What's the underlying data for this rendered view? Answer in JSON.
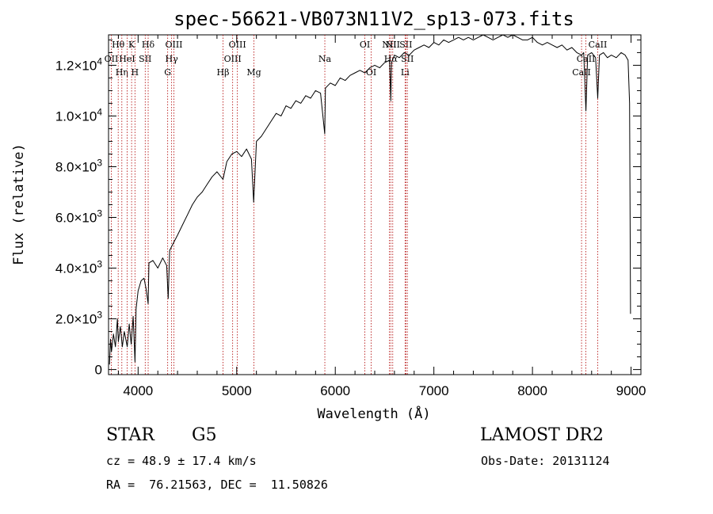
{
  "chart_data": {
    "type": "line",
    "title": "spec-56621-VB073N11V2_sp13-073.fits",
    "xlabel": "Wavelength (Å)",
    "ylabel": "Flux (relative)",
    "xlim": [
      3700,
      9100
    ],
    "ylim": [
      -200,
      13200
    ],
    "x_ticks": [
      4000,
      5000,
      6000,
      7000,
      8000,
      9000
    ],
    "y_ticks": [
      {
        "value": 0,
        "mantissa": "0",
        "exp": ""
      },
      {
        "value": 2000,
        "mantissa": "2.0×10",
        "exp": "3"
      },
      {
        "value": 4000,
        "mantissa": "4.0×10",
        "exp": "3"
      },
      {
        "value": 6000,
        "mantissa": "6.0×10",
        "exp": "3"
      },
      {
        "value": 8000,
        "mantissa": "8.0×10",
        "exp": "3"
      },
      {
        "value": 10000,
        "mantissa": "1.0×10",
        "exp": "4"
      },
      {
        "value": 12000,
        "mantissa": "1.2×10",
        "exp": "4"
      }
    ],
    "series": [
      {
        "values": [
          [
            3710,
            200
          ],
          [
            3720,
            1200
          ],
          [
            3730,
            700
          ],
          [
            3750,
            1400
          ],
          [
            3770,
            900
          ],
          [
            3790,
            2000
          ],
          [
            3800,
            1100
          ],
          [
            3820,
            1700
          ],
          [
            3840,
            900
          ],
          [
            3860,
            1500
          ],
          [
            3880,
            1100
          ],
          [
            3890,
            900
          ],
          [
            3910,
            1800
          ],
          [
            3930,
            1000
          ],
          [
            3950,
            2100
          ],
          [
            3968,
            300
          ],
          [
            3980,
            2400
          ],
          [
            4000,
            3100
          ],
          [
            4030,
            3500
          ],
          [
            4060,
            3600
          ],
          [
            4080,
            3200
          ],
          [
            4102,
            2600
          ],
          [
            4110,
            4200
          ],
          [
            4150,
            4300
          ],
          [
            4200,
            4000
          ],
          [
            4250,
            4400
          ],
          [
            4290,
            4100
          ],
          [
            4305,
            2800
          ],
          [
            4320,
            4700
          ],
          [
            4360,
            5000
          ],
          [
            4400,
            5300
          ],
          [
            4450,
            5700
          ],
          [
            4500,
            6100
          ],
          [
            4550,
            6500
          ],
          [
            4600,
            6800
          ],
          [
            4650,
            7000
          ],
          [
            4700,
            7300
          ],
          [
            4750,
            7600
          ],
          [
            4800,
            7800
          ],
          [
            4861,
            7500
          ],
          [
            4900,
            8200
          ],
          [
            4950,
            8500
          ],
          [
            5000,
            8600
          ],
          [
            5050,
            8400
          ],
          [
            5100,
            8700
          ],
          [
            5150,
            8300
          ],
          [
            5172,
            6600
          ],
          [
            5200,
            9000
          ],
          [
            5250,
            9200
          ],
          [
            5300,
            9500
          ],
          [
            5350,
            9800
          ],
          [
            5400,
            10100
          ],
          [
            5450,
            10000
          ],
          [
            5500,
            10400
          ],
          [
            5550,
            10300
          ],
          [
            5600,
            10600
          ],
          [
            5650,
            10500
          ],
          [
            5700,
            10800
          ],
          [
            5750,
            10700
          ],
          [
            5800,
            11000
          ],
          [
            5850,
            10900
          ],
          [
            5893,
            9300
          ],
          [
            5900,
            11100
          ],
          [
            5950,
            11300
          ],
          [
            6000,
            11200
          ],
          [
            6050,
            11500
          ],
          [
            6100,
            11400
          ],
          [
            6150,
            11600
          ],
          [
            6200,
            11700
          ],
          [
            6250,
            11800
          ],
          [
            6300,
            11700
          ],
          [
            6350,
            11900
          ],
          [
            6400,
            12000
          ],
          [
            6450,
            11900
          ],
          [
            6500,
            12100
          ],
          [
            6550,
            12200
          ],
          [
            6563,
            10600
          ],
          [
            6570,
            12100
          ],
          [
            6600,
            12400
          ],
          [
            6650,
            12300
          ],
          [
            6700,
            12500
          ],
          [
            6750,
            12400
          ],
          [
            6800,
            12600
          ],
          [
            6850,
            12700
          ],
          [
            6900,
            12800
          ],
          [
            6950,
            12700
          ],
          [
            7000,
            12900
          ],
          [
            7050,
            12800
          ],
          [
            7100,
            13000
          ],
          [
            7150,
            12900
          ],
          [
            7200,
            13000
          ],
          [
            7250,
            13100
          ],
          [
            7300,
            13000
          ],
          [
            7350,
            13100
          ],
          [
            7400,
            13000
          ],
          [
            7450,
            13100
          ],
          [
            7500,
            13200
          ],
          [
            7550,
            13100
          ],
          [
            7600,
            13000
          ],
          [
            7650,
            13100
          ],
          [
            7700,
            13200
          ],
          [
            7750,
            13100
          ],
          [
            7800,
            13200
          ],
          [
            7850,
            13100
          ],
          [
            7900,
            13000
          ],
          [
            7950,
            13000
          ],
          [
            8000,
            13100
          ],
          [
            8050,
            12900
          ],
          [
            8100,
            12800
          ],
          [
            8150,
            12900
          ],
          [
            8200,
            12800
          ],
          [
            8250,
            12700
          ],
          [
            8300,
            12800
          ],
          [
            8350,
            12600
          ],
          [
            8400,
            12700
          ],
          [
            8450,
            12500
          ],
          [
            8498,
            12400
          ],
          [
            8520,
            12500
          ],
          [
            8542,
            10200
          ],
          [
            8560,
            12400
          ],
          [
            8600,
            12500
          ],
          [
            8640,
            12300
          ],
          [
            8662,
            10700
          ],
          [
            8680,
            12400
          ],
          [
            8720,
            12500
          ],
          [
            8760,
            12300
          ],
          [
            8800,
            12400
          ],
          [
            8850,
            12300
          ],
          [
            8900,
            12500
          ],
          [
            8940,
            12400
          ],
          [
            8970,
            12200
          ],
          [
            8985,
            10500
          ],
          [
            8995,
            2200
          ]
        ]
      }
    ],
    "lines": [
      {
        "x": 3728,
        "label": "OII",
        "row": 1
      },
      {
        "x": 3798,
        "label": "Hθ",
        "row": 0
      },
      {
        "x": 3835,
        "label": "Hη",
        "row": 2
      },
      {
        "x": 3889,
        "label": "HeI",
        "row": 1
      },
      {
        "x": 3934,
        "label": "K",
        "row": 0
      },
      {
        "x": 3968,
        "label": "H",
        "row": 2
      },
      {
        "x": 4072,
        "label": "SII",
        "row": 1
      },
      {
        "x": 4102,
        "label": "Hδ",
        "row": 0
      },
      {
        "x": 4300,
        "label": "G",
        "row": 2
      },
      {
        "x": 4340,
        "label": "Hγ",
        "row": 1
      },
      {
        "x": 4363,
        "label": "OIII",
        "row": 0
      },
      {
        "x": 4861,
        "label": "Hβ",
        "row": 2
      },
      {
        "x": 4959,
        "label": "OIII",
        "row": 1
      },
      {
        "x": 5007,
        "label": "OIII",
        "row": 0
      },
      {
        "x": 5175,
        "label": "Mg",
        "row": 2
      },
      {
        "x": 5894,
        "label": "Na",
        "row": 1
      },
      {
        "x": 6300,
        "label": "OI",
        "row": 0
      },
      {
        "x": 6364,
        "label": "OI",
        "row": 2
      },
      {
        "x": 6548,
        "label": "NII",
        "row": 0
      },
      {
        "x": 6563,
        "label": "Hα",
        "row": 1
      },
      {
        "x": 6583,
        "label": "NII",
        "row": 0
      },
      {
        "x": 6708,
        "label": "Li",
        "row": 2
      },
      {
        "x": 6716,
        "label": "SII",
        "row": 0
      },
      {
        "x": 6731,
        "label": "SII",
        "row": 1
      },
      {
        "x": 8498,
        "label": "CaII",
        "row": 2
      },
      {
        "x": 8542,
        "label": "CaII",
        "row": 1
      },
      {
        "x": 8662,
        "label": "CaII",
        "row": 0
      }
    ]
  },
  "info": {
    "class": "STAR",
    "subclass": "G5",
    "survey": "LAMOST DR2",
    "cz": "cz = 48.9 ± 17.4 km/s",
    "obs_date": "Obs-Date: 20131124",
    "radec": "RA =  76.21563, DEC =  11.50826"
  }
}
